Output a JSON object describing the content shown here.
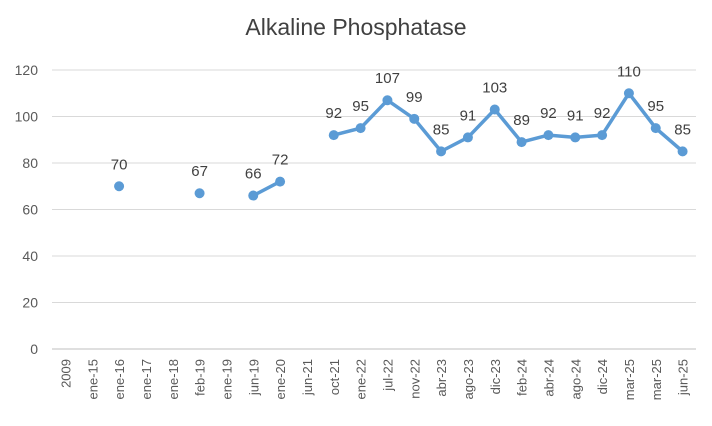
{
  "chart_data": {
    "type": "line",
    "title": "Alkaline Phosphatase",
    "xlabel": "",
    "ylabel": "",
    "ylim": [
      0,
      120
    ],
    "yticks": [
      "0",
      "20",
      "40",
      "60",
      "80",
      "100",
      "120"
    ],
    "grid": true,
    "legend": "none",
    "color": "#5B9BD5",
    "categories": [
      "2009",
      "ene-15",
      "ene-16",
      "ene-17",
      "ene-18",
      "feb-19",
      "ene-19",
      "jun-19",
      "ene-20",
      "jun-21",
      "oct-21",
      "ene-22",
      "jul-22",
      "nov-22",
      "abr-23",
      "ago-23",
      "dic-23",
      "feb-24",
      "abr-24",
      "ago-24",
      "dic-24",
      "mar-25",
      "mar-25",
      "jun-25"
    ],
    "values": [
      null,
      null,
      70,
      null,
      null,
      67,
      null,
      66,
      72,
      null,
      92,
      95,
      107,
      99,
      85,
      91,
      103,
      89,
      92,
      91,
      92,
      110,
      95,
      85
    ]
  }
}
